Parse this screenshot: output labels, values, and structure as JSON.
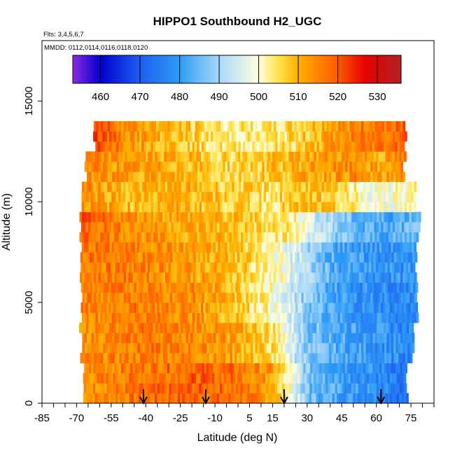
{
  "chart_data": {
    "type": "heatmap",
    "title": "HIPPO1 Southbound H2_UGC",
    "flights_note": "Flts: 3,4,5,6,7",
    "dates_note": "MMDD: 0112,0114,0116,0118,0120",
    "xlabel": "Latitude (deg N)",
    "ylabel": "Altitude (m)",
    "xlim": [
      -85,
      85
    ],
    "ylim": [
      0,
      18000
    ],
    "x_tick_labels": [
      -85,
      -70,
      -55,
      -40,
      -25,
      -10,
      5,
      15,
      30,
      45,
      60,
      75
    ],
    "y_tick_labels": [
      0,
      5000,
      10000,
      15000
    ],
    "colorbar": {
      "range": [
        453,
        536
      ],
      "tick_labels": [
        460,
        470,
        480,
        490,
        500,
        510,
        520,
        530
      ],
      "stops": [
        {
          "v": 453,
          "c": "#8a2be2"
        },
        {
          "v": 460,
          "c": "#0000cd"
        },
        {
          "v": 470,
          "c": "#1e5ff0"
        },
        {
          "v": 480,
          "c": "#2e9bf5"
        },
        {
          "v": 490,
          "c": "#a8d8fa"
        },
        {
          "v": 500,
          "c": "#ffffe0"
        },
        {
          "v": 505,
          "c": "#ffe34d"
        },
        {
          "v": 510,
          "c": "#ffb000"
        },
        {
          "v": 520,
          "c": "#ff5a00"
        },
        {
          "v": 527,
          "c": "#e60000"
        },
        {
          "v": 536,
          "c": "#b22222"
        }
      ]
    },
    "arrow_latitudes": [
      -41,
      -14,
      20,
      62
    ],
    "series_profiles": [
      {
        "alt": [
          0,
          2000
        ],
        "lat_range": [
          -68,
          74
        ],
        "profile": [
          [
            -68,
            514
          ],
          [
            -40,
            517
          ],
          [
            -20,
            519
          ],
          [
            0,
            517
          ],
          [
            15,
            512
          ],
          [
            22,
            500
          ],
          [
            30,
            486
          ],
          [
            45,
            481
          ],
          [
            60,
            478
          ],
          [
            74,
            472
          ]
        ]
      },
      {
        "alt": [
          2000,
          4000
        ],
        "lat_range": [
          -69,
          77
        ],
        "profile": [
          [
            -69,
            514
          ],
          [
            -40,
            516
          ],
          [
            -20,
            515
          ],
          [
            0,
            511
          ],
          [
            15,
            505
          ],
          [
            22,
            496
          ],
          [
            30,
            487
          ],
          [
            45,
            482
          ],
          [
            60,
            479
          ],
          [
            77,
            476
          ]
        ]
      },
      {
        "alt": [
          4000,
          6000
        ],
        "lat_range": [
          -69,
          78
        ],
        "profile": [
          [
            -69,
            515
          ],
          [
            -40,
            516
          ],
          [
            -20,
            514
          ],
          [
            0,
            508
          ],
          [
            12,
            502
          ],
          [
            22,
            494
          ],
          [
            32,
            486
          ],
          [
            45,
            480
          ],
          [
            60,
            478
          ],
          [
            78,
            477
          ]
        ]
      },
      {
        "alt": [
          6000,
          8000
        ],
        "lat_range": [
          -69,
          78
        ],
        "profile": [
          [
            -69,
            517
          ],
          [
            -40,
            515
          ],
          [
            -20,
            512
          ],
          [
            0,
            508
          ],
          [
            12,
            503
          ],
          [
            22,
            497
          ],
          [
            32,
            488
          ],
          [
            45,
            481
          ],
          [
            60,
            479
          ],
          [
            78,
            478
          ]
        ]
      },
      {
        "alt": [
          8000,
          9500
        ],
        "lat_range": [
          -69,
          79
        ],
        "profile": [
          [
            -69,
            519
          ],
          [
            -40,
            513
          ],
          [
            -20,
            511
          ],
          [
            0,
            508
          ],
          [
            15,
            505
          ],
          [
            25,
            502
          ],
          [
            35,
            493
          ],
          [
            50,
            484
          ],
          [
            65,
            482
          ],
          [
            79,
            486
          ]
        ]
      },
      {
        "alt": [
          9500,
          11000
        ],
        "lat_range": [
          -68,
          78
        ],
        "profile": [
          [
            -68,
            514
          ],
          [
            -45,
            509
          ],
          [
            -25,
            510
          ],
          [
            -5,
            507
          ],
          [
            15,
            505
          ],
          [
            30,
            509
          ],
          [
            45,
            505
          ],
          [
            60,
            498
          ],
          [
            78,
            503
          ]
        ]
      },
      {
        "alt": [
          11000,
          12500
        ],
        "lat_range": [
          -67,
          73
        ],
        "profile": [
          [
            -67,
            514
          ],
          [
            -45,
            512
          ],
          [
            -25,
            510
          ],
          [
            -5,
            506
          ],
          [
            15,
            508
          ],
          [
            35,
            512
          ],
          [
            50,
            514
          ],
          [
            62,
            510
          ],
          [
            73,
            516
          ]
        ]
      },
      {
        "alt": [
          12500,
          14000
        ],
        "lat_range": [
          -63,
          73
        ],
        "profile": [
          [
            -63,
            522
          ],
          [
            -45,
            513
          ],
          [
            -25,
            508
          ],
          [
            -10,
            504
          ],
          [
            10,
            503
          ],
          [
            25,
            506
          ],
          [
            40,
            512
          ],
          [
            55,
            516
          ],
          [
            73,
            520
          ]
        ]
      }
    ]
  }
}
